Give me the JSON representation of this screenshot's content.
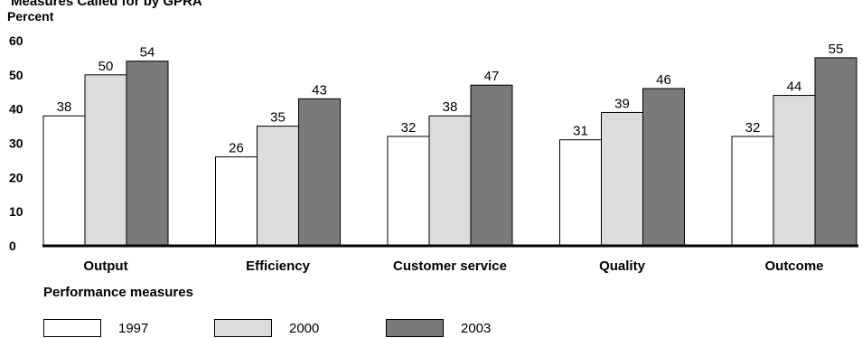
{
  "chart_data": {
    "type": "bar",
    "title": "Measures Called for by GPRA",
    "ylabel": "Percent",
    "xlabel": "Performance measures",
    "categories": [
      "Output",
      "Efficiency",
      "Customer service",
      "Quality",
      "Outcome"
    ],
    "series": [
      {
        "name": "1997",
        "values": [
          38,
          26,
          32,
          31,
          32
        ],
        "color": "#ffffff"
      },
      {
        "name": "2000",
        "values": [
          50,
          35,
          38,
          39,
          44
        ],
        "color": "#dcdcdc"
      },
      {
        "name": "2003",
        "values": [
          54,
          43,
          47,
          46,
          55
        ],
        "color": "#7a7a7a"
      }
    ],
    "ylim": [
      0,
      60
    ],
    "yticks": [
      "0",
      "10",
      "20",
      "30",
      "40",
      "50",
      "60"
    ],
    "grid": false,
    "legend": "bottom",
    "data_labels": true
  }
}
